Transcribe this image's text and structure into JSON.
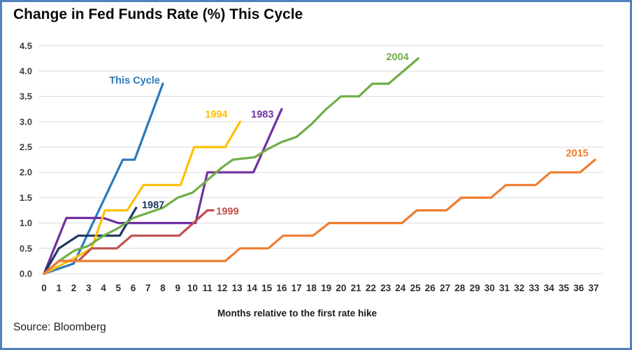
{
  "source": {
    "text": "Source: Bloomberg"
  },
  "chart_data": {
    "type": "line",
    "title": "Change in Fed Funds Rate (%) This Cycle",
    "xlabel": "Months relative to the first rate hike",
    "ylabel": "",
    "xlim": [
      0,
      37
    ],
    "ylim": [
      0,
      4.5
    ],
    "grid": "horizontal-only",
    "legend_position": "inline-labels-at-line-ends",
    "y_ticks": [
      "0.0",
      "0.5",
      "1.0",
      "1.5",
      "2.0",
      "2.5",
      "3.0",
      "3.5",
      "4.0",
      "4.5"
    ],
    "x_ticks": [
      0,
      1,
      2,
      3,
      4,
      5,
      6,
      7,
      8,
      9,
      10,
      11,
      12,
      13,
      14,
      15,
      16,
      17,
      18,
      19,
      20,
      21,
      22,
      23,
      24,
      25,
      26,
      27,
      28,
      29,
      30,
      31,
      32,
      33,
      34,
      35,
      36,
      37
    ],
    "series": [
      {
        "name": "This Cycle",
        "color": "#2879bd",
        "label_at": [
          6.1,
          3.82
        ],
        "points": [
          [
            0,
            0
          ],
          [
            2,
            0.2
          ],
          [
            5.3,
            2.25
          ],
          [
            6.1,
            2.25
          ],
          [
            8,
            3.75
          ]
        ]
      },
      {
        "name": "1983",
        "color": "#7030a0",
        "label_at": [
          14.7,
          3.15
        ],
        "points": [
          [
            0,
            0
          ],
          [
            1.5,
            1.1
          ],
          [
            4,
            1.1
          ],
          [
            5,
            1.0
          ],
          [
            10.2,
            1.0
          ],
          [
            11,
            2.0
          ],
          [
            14.1,
            2.0
          ],
          [
            16,
            3.25
          ]
        ]
      },
      {
        "name": "1987",
        "color": "#203864",
        "label_at": [
          7.35,
          1.36
        ],
        "points": [
          [
            0,
            0
          ],
          [
            1,
            0.5
          ],
          [
            2.3,
            0.75
          ],
          [
            5.1,
            0.75
          ],
          [
            6.2,
            1.3
          ]
        ]
      },
      {
        "name": "1994",
        "color": "#ffc000",
        "label_at": [
          11.6,
          3.15
        ],
        "points": [
          [
            0,
            0
          ],
          [
            2,
            0.3
          ],
          [
            3.2,
            0.5
          ],
          [
            4.1,
            1.25
          ],
          [
            5.6,
            1.25
          ],
          [
            6.7,
            1.75
          ],
          [
            9.2,
            1.75
          ],
          [
            10.1,
            2.5
          ],
          [
            12.2,
            2.5
          ],
          [
            13.2,
            3.0
          ]
        ]
      },
      {
        "name": "1999",
        "color": "#c0504d",
        "label_at": [
          12.35,
          1.24
        ],
        "points": [
          [
            0,
            0
          ],
          [
            1,
            0.25
          ],
          [
            2.3,
            0.25
          ],
          [
            3.2,
            0.5
          ],
          [
            4.9,
            0.5
          ],
          [
            5.9,
            0.75
          ],
          [
            9.1,
            0.75
          ],
          [
            11,
            1.25
          ],
          [
            11.4,
            1.25
          ]
        ]
      },
      {
        "name": "2004",
        "color": "#70ad47",
        "label_at": [
          23.8,
          4.28
        ],
        "points": [
          [
            0,
            0
          ],
          [
            1,
            0.25
          ],
          [
            2,
            0.45
          ],
          [
            3,
            0.55
          ],
          [
            4,
            0.75
          ],
          [
            5,
            0.9
          ],
          [
            6,
            1.1
          ],
          [
            7,
            1.2
          ],
          [
            8,
            1.3
          ],
          [
            9,
            1.5
          ],
          [
            10,
            1.6
          ],
          [
            11,
            1.85
          ],
          [
            12,
            2.1
          ],
          [
            12.7,
            2.25
          ],
          [
            14.2,
            2.3
          ],
          [
            15,
            2.45
          ],
          [
            16,
            2.6
          ],
          [
            17,
            2.7
          ],
          [
            18,
            2.95
          ],
          [
            19,
            3.25
          ],
          [
            20,
            3.5
          ],
          [
            21.2,
            3.5
          ],
          [
            22.1,
            3.75
          ],
          [
            23.2,
            3.75
          ],
          [
            25.2,
            4.25
          ]
        ]
      },
      {
        "name": "2015",
        "color": "#ed7d31",
        "label_at": [
          35.9,
          2.38
        ],
        "points": [
          [
            0,
            0
          ],
          [
            1,
            0.25
          ],
          [
            12.2,
            0.25
          ],
          [
            13.2,
            0.5
          ],
          [
            15.1,
            0.5
          ],
          [
            16.1,
            0.75
          ],
          [
            18.1,
            0.75
          ],
          [
            19.2,
            1.0
          ],
          [
            24.1,
            1.0
          ],
          [
            25.1,
            1.25
          ],
          [
            27.1,
            1.25
          ],
          [
            28.1,
            1.5
          ],
          [
            30.1,
            1.5
          ],
          [
            31.1,
            1.75
          ],
          [
            33.1,
            1.75
          ],
          [
            34.1,
            2.0
          ],
          [
            36.1,
            2.0
          ],
          [
            37.1,
            2.25
          ]
        ]
      }
    ]
  }
}
